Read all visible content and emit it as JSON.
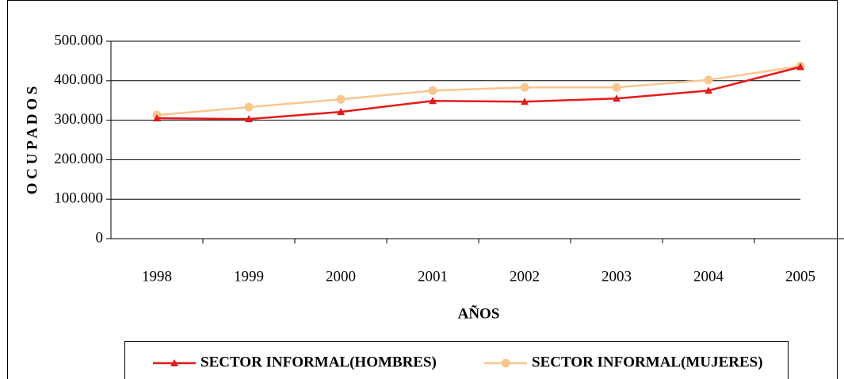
{
  "chart_data": {
    "type": "line",
    "x_label": "AÑOS",
    "y_label": "O C U P A D O S",
    "categories": [
      "1998",
      "1999",
      "2000",
      "2001",
      "2002",
      "2003",
      "2004",
      "2005"
    ],
    "series": [
      {
        "name": "SECTOR INFORMAL(HOMBRES)",
        "color": "#e31b1b",
        "marker": "triangle",
        "values": [
          305000,
          303000,
          321000,
          349000,
          347000,
          355000,
          375000,
          435000
        ]
      },
      {
        "name": "SECTOR INFORMAL(MUJERES)",
        "color": "#f9c690",
        "marker": "circle",
        "values": [
          313000,
          333000,
          353000,
          375000,
          383000,
          383000,
          402000,
          437000
        ]
      }
    ],
    "ylim": [
      0,
      500000
    ],
    "yticks": [
      0,
      {
        "value": 100000,
        "label": "100.000"
      },
      {
        "value": 200000,
        "label": "200.000"
      },
      {
        "value": 300000,
        "label": "300.000"
      },
      {
        "value": 400000,
        "label": "400.000"
      },
      {
        "value": 500000,
        "label": "500.000"
      }
    ],
    "grid": true
  }
}
